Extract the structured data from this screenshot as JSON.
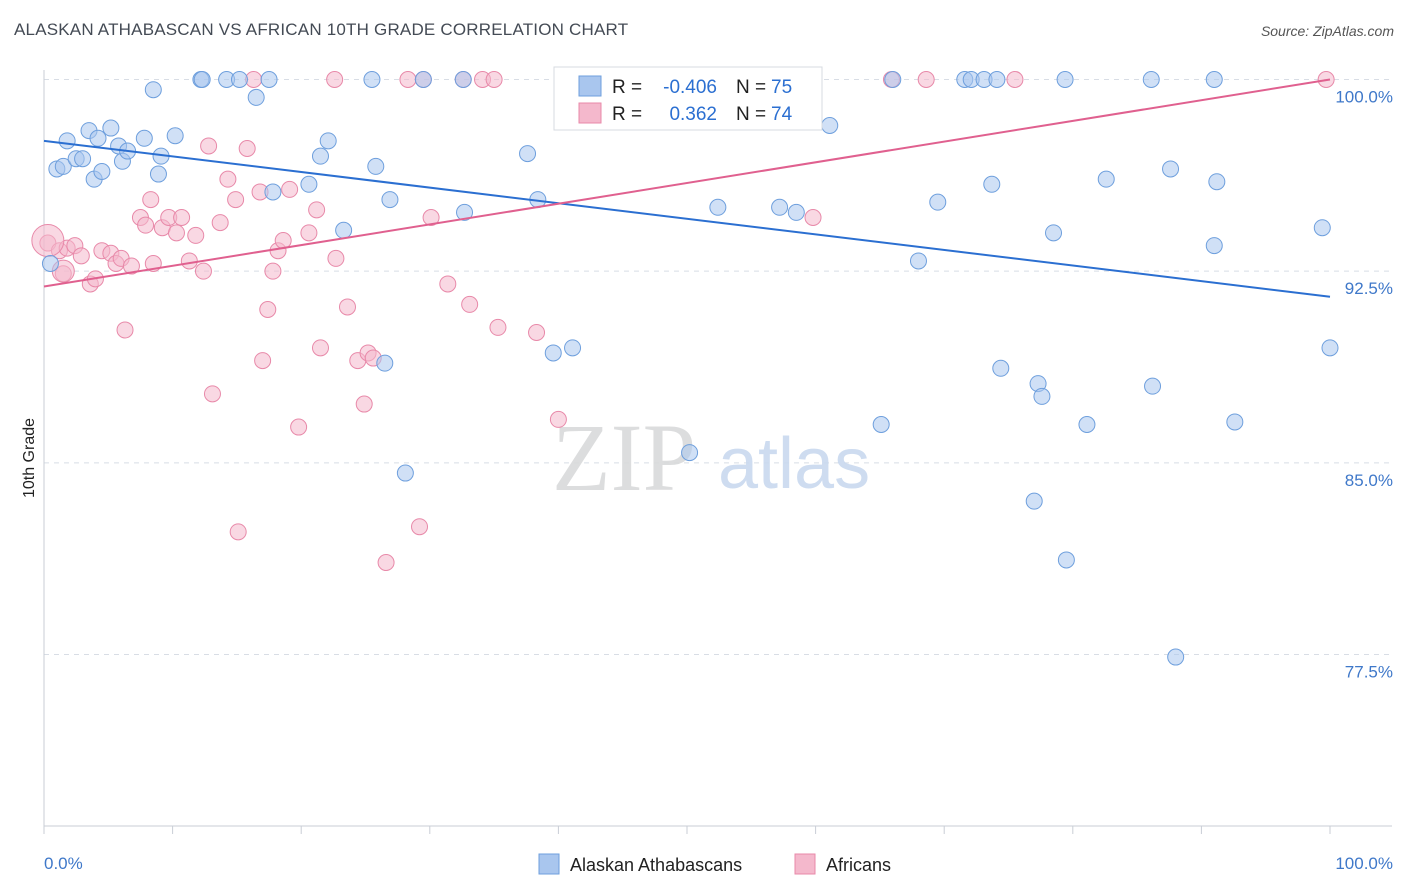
{
  "title": "ALASKAN ATHABASCAN VS AFRICAN 10TH GRADE CORRELATION CHART",
  "source": "Source: ZipAtlas.com",
  "watermark": {
    "zip": "ZIP",
    "atlas": "atlas"
  },
  "colors": {
    "blue_fill": "#a9c6ee",
    "blue_stroke": "#6e9fdd",
    "blue_line": "#2b6fd1",
    "pink_fill": "#f4b8cc",
    "pink_stroke": "#e889a9",
    "pink_line": "#e0608f",
    "tick_text": "#3f78c9",
    "grid": "#d8dde5"
  },
  "stats_legend": {
    "row1": {
      "r_label": "R =",
      "r_value": "-0.406",
      "n_label": "N =",
      "n_value": "75"
    },
    "row2": {
      "r_label": "R =",
      "r_value": "0.362",
      "n_label": "N =",
      "n_value": "74"
    }
  },
  "chart_data": {
    "type": "scatter",
    "title": "ALASKAN ATHABASCAN VS AFRICAN 10TH GRADE CORRELATION CHART",
    "xlabel": "",
    "ylabel": "10th Grade",
    "xlim": [
      0,
      100
    ],
    "ylim": [
      70.5,
      101.5
    ],
    "x_tick_labels": [
      "0.0%",
      "100.0%"
    ],
    "y_ticks": [
      100.0,
      92.5,
      85.0,
      77.5
    ],
    "y_tick_labels": [
      "100.0%",
      "92.5%",
      "85.0%",
      "77.5%"
    ],
    "grid": true,
    "legend_position": "bottom-center",
    "series": [
      {
        "name": "Alaskan Athabascans",
        "color": "#a9c6ee",
        "trend": {
          "x": [
            0,
            100
          ],
          "y": [
            97.6,
            91.5
          ]
        },
        "points": [
          [
            0.5,
            92.8
          ],
          [
            1.0,
            96.5
          ],
          [
            1.5,
            96.6
          ],
          [
            1.8,
            97.6
          ],
          [
            2.5,
            96.9
          ],
          [
            3.0,
            96.9
          ],
          [
            3.5,
            98.0
          ],
          [
            3.9,
            96.1
          ],
          [
            4.2,
            97.7
          ],
          [
            4.5,
            96.4
          ],
          [
            5.2,
            98.1
          ],
          [
            5.8,
            97.4
          ],
          [
            6.1,
            96.8
          ],
          [
            6.5,
            97.2
          ],
          [
            7.8,
            97.7
          ],
          [
            8.5,
            99.6
          ],
          [
            8.9,
            96.3
          ],
          [
            9.1,
            97.0
          ],
          [
            10.2,
            97.8
          ],
          [
            12.2,
            100.0
          ],
          [
            12.3,
            100.0
          ],
          [
            14.2,
            100.0
          ],
          [
            15.2,
            100.0
          ],
          [
            16.5,
            99.3
          ],
          [
            17.5,
            100.0
          ],
          [
            17.8,
            95.6
          ],
          [
            20.6,
            95.9
          ],
          [
            21.5,
            97.0
          ],
          [
            22.1,
            97.6
          ],
          [
            23.3,
            94.1
          ],
          [
            25.5,
            100.0
          ],
          [
            25.8,
            96.6
          ],
          [
            26.5,
            88.9
          ],
          [
            26.9,
            95.3
          ],
          [
            28.1,
            84.6
          ],
          [
            29.5,
            100.0
          ],
          [
            32.6,
            100.0
          ],
          [
            32.7,
            94.8
          ],
          [
            37.6,
            97.1
          ],
          [
            38.4,
            95.3
          ],
          [
            39.6,
            89.3
          ],
          [
            41.1,
            89.5
          ],
          [
            50.2,
            85.4
          ],
          [
            52.4,
            95.0
          ],
          [
            57.2,
            95.0
          ],
          [
            58.5,
            94.8
          ],
          [
            61.1,
            98.2
          ],
          [
            65.1,
            86.5
          ],
          [
            66.0,
            100.0
          ],
          [
            68.0,
            92.9
          ],
          [
            69.5,
            95.2
          ],
          [
            71.6,
            100.0
          ],
          [
            72.1,
            100.0
          ],
          [
            73.1,
            100.0
          ],
          [
            73.7,
            95.9
          ],
          [
            74.1,
            100.0
          ],
          [
            74.4,
            88.7
          ],
          [
            77.0,
            83.5
          ],
          [
            77.3,
            88.1
          ],
          [
            77.6,
            87.6
          ],
          [
            78.5,
            94.0
          ],
          [
            79.4,
            100.0
          ],
          [
            79.5,
            81.2
          ],
          [
            81.1,
            86.5
          ],
          [
            82.6,
            96.1
          ],
          [
            86.1,
            100.0
          ],
          [
            86.2,
            88.0
          ],
          [
            87.6,
            96.5
          ],
          [
            88.0,
            77.4
          ],
          [
            91.0,
            100.0
          ],
          [
            91.0,
            93.5
          ],
          [
            91.2,
            96.0
          ],
          [
            92.6,
            86.6
          ],
          [
            99.4,
            94.2
          ],
          [
            100.0,
            89.5
          ]
        ]
      },
      {
        "name": "Africans",
        "color": "#f4b8cc",
        "trend": {
          "x": [
            0,
            100
          ],
          "y": [
            91.9,
            100.0
          ]
        },
        "points": [
          [
            0.3,
            93.6
          ],
          [
            1.2,
            93.3
          ],
          [
            1.5,
            92.4
          ],
          [
            1.8,
            93.4
          ],
          [
            2.4,
            93.5
          ],
          [
            2.9,
            93.1
          ],
          [
            3.6,
            92.0
          ],
          [
            4.0,
            92.2
          ],
          [
            4.5,
            93.3
          ],
          [
            5.2,
            93.2
          ],
          [
            5.6,
            92.8
          ],
          [
            6.0,
            93.0
          ],
          [
            6.3,
            90.2
          ],
          [
            6.8,
            92.7
          ],
          [
            7.5,
            94.6
          ],
          [
            7.9,
            94.3
          ],
          [
            8.3,
            95.3
          ],
          [
            8.5,
            92.8
          ],
          [
            9.2,
            94.2
          ],
          [
            9.7,
            94.6
          ],
          [
            10.3,
            94.0
          ],
          [
            10.7,
            94.6
          ],
          [
            11.3,
            92.9
          ],
          [
            11.8,
            93.9
          ],
          [
            12.4,
            92.5
          ],
          [
            12.8,
            97.4
          ],
          [
            13.1,
            87.7
          ],
          [
            13.7,
            94.4
          ],
          [
            14.3,
            96.1
          ],
          [
            14.9,
            95.3
          ],
          [
            15.1,
            82.3
          ],
          [
            15.8,
            97.3
          ],
          [
            16.3,
            100.0
          ],
          [
            16.8,
            95.6
          ],
          [
            17.0,
            89.0
          ],
          [
            17.4,
            91.0
          ],
          [
            17.8,
            92.5
          ],
          [
            18.2,
            93.3
          ],
          [
            18.6,
            93.7
          ],
          [
            19.1,
            95.7
          ],
          [
            19.8,
            86.4
          ],
          [
            20.6,
            94.0
          ],
          [
            21.2,
            94.9
          ],
          [
            21.5,
            89.5
          ],
          [
            22.6,
            100.0
          ],
          [
            22.7,
            93.0
          ],
          [
            23.6,
            91.1
          ],
          [
            24.4,
            89.0
          ],
          [
            24.9,
            87.3
          ],
          [
            25.2,
            89.3
          ],
          [
            25.6,
            89.1
          ],
          [
            26.6,
            81.1
          ],
          [
            28.3,
            100.0
          ],
          [
            29.2,
            82.5
          ],
          [
            29.5,
            100.0
          ],
          [
            30.1,
            94.6
          ],
          [
            31.4,
            92.0
          ],
          [
            32.6,
            100.0
          ],
          [
            33.1,
            91.2
          ],
          [
            34.1,
            100.0
          ],
          [
            35.0,
            100.0
          ],
          [
            35.3,
            90.3
          ],
          [
            38.3,
            90.1
          ],
          [
            40.0,
            86.7
          ],
          [
            41.2,
            99.3
          ],
          [
            44.2,
            100.0
          ],
          [
            51.6,
            100.0
          ],
          [
            53.4,
            100.0
          ],
          [
            57.0,
            99.5
          ],
          [
            59.8,
            94.6
          ],
          [
            65.9,
            100.0
          ],
          [
            68.6,
            100.0
          ],
          [
            75.5,
            100.0
          ],
          [
            99.7,
            100.0
          ]
        ]
      }
    ]
  }
}
